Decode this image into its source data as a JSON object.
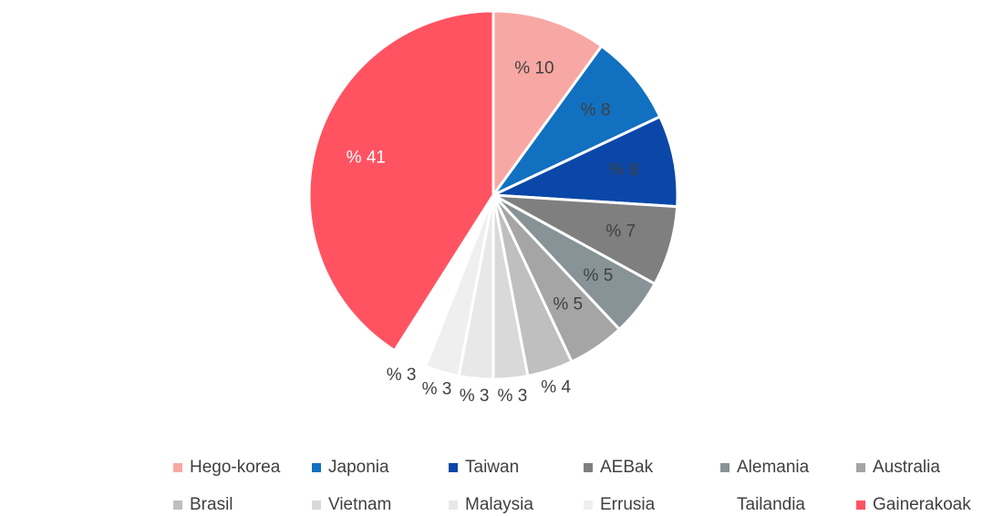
{
  "chart_data": {
    "type": "pie",
    "categories": [
      "Hego-korea",
      "Japonia",
      "Taiwan",
      "AEBak",
      "Alemania",
      "Australia",
      "Brasil",
      "Vietnam",
      "Malaysia",
      "Errusia",
      "Tailandia",
      "Gainerakoak"
    ],
    "values": [
      10,
      8,
      8,
      7,
      5,
      5,
      4,
      3,
      3,
      3,
      3,
      41
    ],
    "value_labels": [
      "% 10",
      "% 8",
      "% 8",
      "% 7",
      "% 5",
      "% 5",
      "% 4",
      "% 3",
      "% 3",
      "% 3",
      "% 3",
      "% 41"
    ],
    "colors": [
      "#f8a8a4",
      "#1170c0",
      "#0a47a8",
      "#7f7f7f",
      "#879396",
      "#a5a5a5",
      "#bfbfbf",
      "#d9d9d9",
      "#e8e8e8",
      "#efefef",
      "#ffffff",
      "#ff5362"
    ],
    "legend": "bottom"
  }
}
